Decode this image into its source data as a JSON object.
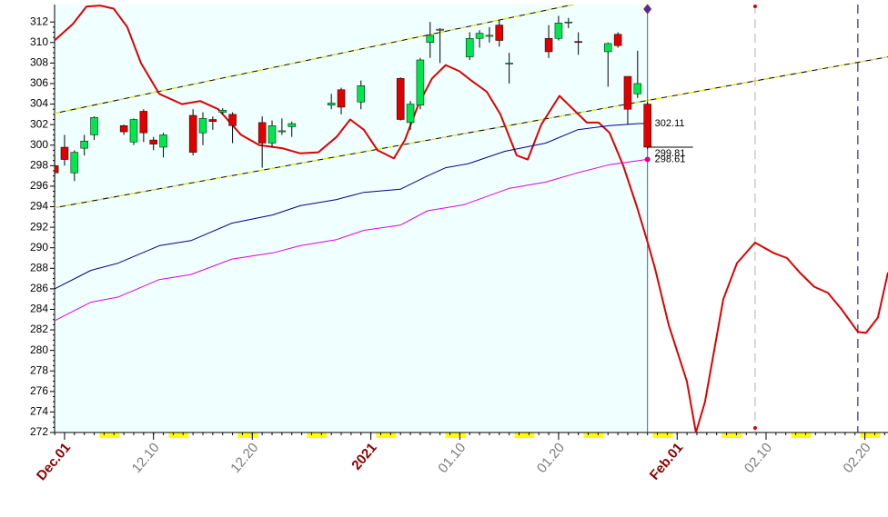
{
  "chart_data": {
    "type": "candlestick",
    "xlim": [
      -1.01,
      83.34
    ],
    "ylim": [
      272,
      313.7
    ],
    "yticks": [
      272,
      274,
      276,
      278,
      280,
      282,
      284,
      286,
      288,
      290,
      292,
      294,
      296,
      298,
      300,
      302,
      304,
      306,
      308,
      310,
      312
    ],
    "xticks": [
      {
        "value": 0,
        "label": "Dec.01"
      },
      {
        "value": 9,
        "label": "12.10"
      },
      {
        "value": 19,
        "label": "12.20"
      },
      {
        "value": 31,
        "label": "2021"
      },
      {
        "value": 40,
        "label": "01.10"
      },
      {
        "value": 50,
        "label": "01.20"
      },
      {
        "value": 62,
        "label": "Feb.01"
      },
      {
        "value": 71,
        "label": "02.10"
      },
      {
        "value": 81,
        "label": "02.20"
      }
    ],
    "up_color": "#00e64d",
    "down_color": "#e00000",
    "candles": {
      "x": [
        -1,
        0,
        1,
        2,
        3,
        6,
        7,
        8,
        9,
        10,
        13,
        14,
        15,
        16,
        17,
        20,
        21,
        22,
        23,
        27,
        28,
        30,
        34,
        35,
        36,
        37,
        38,
        41,
        42,
        43,
        44,
        45,
        49,
        50,
        51,
        52,
        55,
        56,
        57,
        58,
        59
      ],
      "open": [
        298,
        299.8,
        297.3,
        299.7,
        301,
        301.9,
        300.3,
        303.3,
        300.5,
        299.8,
        302.9,
        301.2,
        302.5,
        303.2,
        303,
        302.2,
        300.2,
        301.3,
        301.8,
        303.9,
        305.4,
        304.2,
        306.5,
        302.2,
        303.9,
        310,
        311.2,
        308.6,
        310.4,
        310.6,
        311.7,
        308,
        310.4,
        310.4,
        312,
        310.1,
        309.1,
        310.8,
        306.7,
        305,
        304
      ],
      "high": [
        299,
        301,
        299.5,
        301,
        302.8,
        302,
        302.6,
        303.5,
        300.8,
        301.2,
        303.5,
        303.2,
        302.8,
        303.6,
        303.2,
        302.8,
        302.4,
        302.6,
        302.3,
        305,
        305.6,
        306.3,
        306.6,
        304.3,
        308.5,
        312,
        311.4,
        311,
        311.2,
        311.5,
        312.2,
        309,
        311.7,
        312.6,
        312.4,
        311,
        310,
        311,
        306.7,
        309.2,
        304.2
      ],
      "low": [
        295,
        298,
        296.5,
        299,
        300.5,
        301,
        300,
        300.3,
        299.5,
        298.8,
        299,
        300,
        301.5,
        303,
        300.2,
        297.8,
        299.8,
        301,
        300.8,
        303.5,
        303,
        303.5,
        302.4,
        301.5,
        303.5,
        308.5,
        308,
        308.3,
        309.5,
        310,
        309.6,
        306,
        308.5,
        310.2,
        311.4,
        308.8,
        305.7,
        309.5,
        302,
        304.6,
        299.6
      ],
      "close": [
        297.3,
        298.6,
        299.3,
        300.4,
        302.7,
        301.3,
        302.5,
        301.2,
        300.1,
        301,
        299.3,
        302.6,
        302.3,
        303.4,
        301.9,
        300.2,
        301.9,
        301.4,
        302.1,
        304.1,
        303.7,
        305.8,
        302.5,
        304,
        308.3,
        310.7,
        311.3,
        310.4,
        310.9,
        310.7,
        310.2,
        308,
        309.1,
        311.9,
        312,
        310,
        309.9,
        309.7,
        303.5,
        306,
        299.8
      ]
    },
    "lines": [
      {
        "color": "#e00000",
        "x": [
          -1.01,
          0.83,
          2.21,
          3.59,
          4.97,
          6.35,
          7.73,
          9.58,
          11.88,
          13.72,
          15.56,
          17.86,
          19.71,
          22.01,
          23.85,
          25.69,
          27.53,
          28.91,
          30.29,
          31.68,
          33.33,
          34.44,
          35.82,
          37.2,
          38.58,
          39.96,
          41.16,
          42.73,
          44.11,
          45.76,
          46.87,
          48.25,
          50.09,
          51.47,
          52.86,
          54.05,
          55.16,
          56.54,
          57.92,
          59.02,
          59.76,
          61.14,
          62.98,
          63.9,
          64.82,
          66.67,
          68.05,
          69.89,
          71.73,
          73.11,
          74.49,
          75.87,
          77.26,
          78.64,
          80.29,
          81.12,
          82.32,
          83.34
        ],
        "values": [
          310.2,
          311.8,
          313.5,
          313.6,
          313.3,
          311.5,
          308,
          305,
          304,
          304.3,
          303.5,
          301,
          300,
          299.7,
          299.2,
          299.3,
          300.8,
          302.5,
          301.5,
          299.5,
          298.7,
          300.5,
          304,
          306.5,
          307.8,
          307.2,
          306.3,
          305.2,
          303,
          299,
          298.6,
          302,
          304.8,
          303.5,
          302.2,
          302.2,
          301.2,
          298,
          294,
          290.5,
          288,
          282.5,
          277,
          272,
          275,
          285,
          288.5,
          290.5,
          289.5,
          289,
          287.5,
          286.2,
          285.6,
          284,
          281.8,
          281.7,
          283.2,
          287.6
        ]
      },
      {
        "color": "#00008b",
        "x": [
          -1.01,
          2.67,
          5.43,
          9.58,
          12.8,
          16.94,
          21.08,
          23.85,
          27.53,
          30.29,
          33.98,
          36.74,
          38.58,
          40.88,
          44.57,
          48.71,
          51.93,
          55.16,
          58.1,
          59
        ],
        "values": [
          286,
          287.8,
          288.5,
          290.2,
          290.7,
          292.4,
          293.2,
          294.1,
          294.7,
          295.4,
          295.7,
          297,
          297.8,
          298.2,
          299.4,
          300.2,
          301.5,
          301.9,
          302.1,
          302.11
        ]
      },
      {
        "color": "#e000e0",
        "x": [
          -1.01,
          2.67,
          5.43,
          9.58,
          12.8,
          16.94,
          21.08,
          23.85,
          27.53,
          30.29,
          33.98,
          36.74,
          40.42,
          45.03,
          48.71,
          51.93,
          55.16,
          59
        ],
        "values": [
          282.9,
          284.7,
          285.2,
          286.9,
          287.4,
          288.9,
          289.5,
          290.2,
          290.8,
          291.7,
          292.2,
          293.6,
          294.2,
          295.8,
          296.4,
          297.3,
          298.1,
          298.61
        ]
      }
    ],
    "trend_lines": [
      {
        "x": [
          -1.01,
          51.47
        ],
        "values": [
          303.1,
          313.7
        ]
      },
      {
        "x": [
          -1.01,
          83.34
        ],
        "values": [
          293.9,
          308.6
        ]
      }
    ],
    "vlines": [
      {
        "x": 59,
        "color": "#1f6fb0",
        "dashed": false
      },
      {
        "x": 69.89,
        "color": "#b0b0b0",
        "dashed": true
      },
      {
        "x": 80.29,
        "color": "#00008b",
        "dashed": true
      }
    ],
    "price_labels": [
      302.11,
      299.81,
      298.61
    ]
  }
}
